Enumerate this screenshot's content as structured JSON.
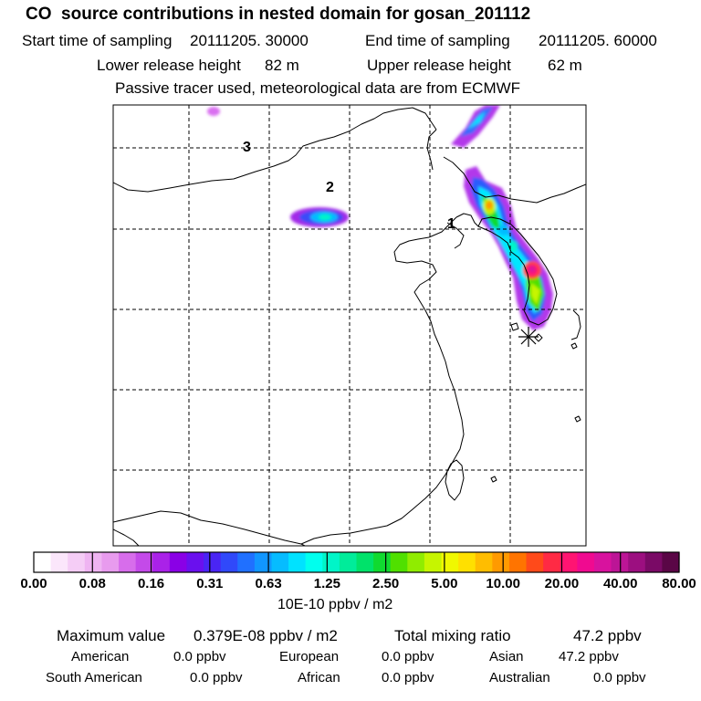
{
  "title": "CO  source contributions in nested domain for gosan_201112",
  "sampling": {
    "start_label": "Start time of sampling",
    "start_value": "20111205. 30000",
    "end_label": "End time of sampling",
    "end_value": "20111205. 60000"
  },
  "release": {
    "lower_label": "Lower release height",
    "lower_value": "82 m",
    "upper_label": "Upper release height",
    "upper_value": "62 m"
  },
  "note": "Passive tracer used, meteorological data are from ECMWF",
  "map_labels": [
    "1",
    "2",
    "3"
  ],
  "colors": {
    "scale": [
      "#ffffff",
      "#fbe6fb",
      "#f5cdf6",
      "#efb4f2",
      "#e89bee",
      "#d76deb",
      "#c44ae9",
      "#aa22e8",
      "#8a00e6",
      "#6a10ee",
      "#4a25f4",
      "#3049fa",
      "#2070ff",
      "#1196ff",
      "#06bcff",
      "#00e2ff",
      "#00ffee",
      "#00f5c8",
      "#00ec9a",
      "#00e26a",
      "#10da30",
      "#50e000",
      "#90ec00",
      "#c6f500",
      "#f0f800",
      "#ffe000",
      "#ffbd00",
      "#ff9a00",
      "#ff7400",
      "#ff4a1a",
      "#ff2a44",
      "#ff1472",
      "#f00a90",
      "#d8129e",
      "#bc1596",
      "#9c0f80",
      "#7a0a66",
      "#5a0646"
    ]
  },
  "chart_data": {
    "type": "heatmap",
    "title": "CO  source contributions in nested domain for gosan_201112",
    "colorbar": {
      "tick_labels": [
        "0.00",
        "0.08",
        "0.16",
        "0.31",
        "0.63",
        "1.25",
        "2.50",
        "5.00",
        "10.00",
        "20.00",
        "40.00",
        "80.00"
      ],
      "units": "10E-10 ppbv / m2"
    },
    "plumes": [
      {
        "name": "plume-north",
        "value_class": "0.16-0.63"
      },
      {
        "name": "plume-korea-north",
        "value_class": "0.63-20.00"
      },
      {
        "name": "plume-korea-peak",
        "value_class": "20.00-80.00"
      },
      {
        "name": "plume-inland-2",
        "value_class": "0.08-1.25"
      }
    ],
    "marker": "receptor-asterisk"
  },
  "summary": {
    "max_label": "Maximum value",
    "max_value": "0.379E-08 ppbv / m2",
    "total_label": "Total mixing ratio",
    "total_value": "47.2 ppbv",
    "american_label": "American",
    "american_value": "0.0 ppbv",
    "european_label": "European",
    "european_value": "0.0 ppbv",
    "asian_label": "Asian",
    "asian_value": "47.2 ppbv",
    "samerican_label": "South American",
    "samerican_value": "0.0 ppbv",
    "african_label": "African",
    "african_value": "0.0 ppbv",
    "australian_label": "Australian",
    "australian_value": "0.0 ppbv"
  }
}
